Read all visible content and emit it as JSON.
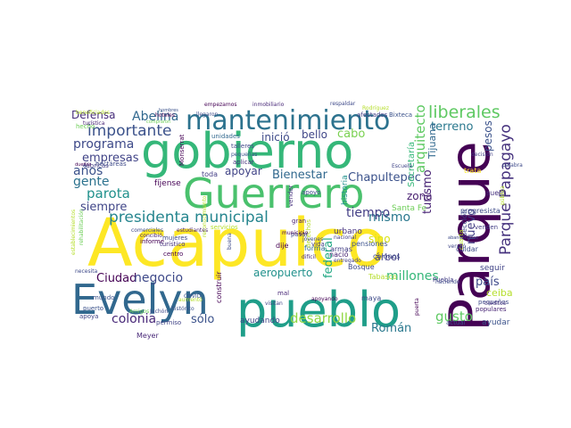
{
  "words": [
    {
      "text": "Acapulco",
      "color": "#fde725"
    },
    {
      "text": "Parque",
      "color": "#440154"
    },
    {
      "text": "pueblo",
      "color": "#1f9e89"
    },
    {
      "text": "gobierno",
      "color": "#35b779"
    },
    {
      "text": "Guerrero",
      "color": "#4ac16d"
    },
    {
      "text": "Evelyn",
      "color": "#31688e"
    },
    {
      "text": "mantenimiento",
      "color": "#2c728e"
    },
    {
      "text": "presidenta municipal",
      "color": "#25858e"
    },
    {
      "text": "liberales",
      "color": "#5ec962"
    },
    {
      "text": "Parque Papagayo",
      "color": "#46327e"
    },
    {
      "text": "importante",
      "color": "#3b528b"
    },
    {
      "text": "Abelina",
      "color": "#31688e"
    },
    {
      "text": "Defensa",
      "color": "#472d7b"
    },
    {
      "text": "programa",
      "color": "#3e4a89"
    },
    {
      "text": "empresas",
      "color": "#414487"
    },
    {
      "text": "años",
      "color": "#3b528b"
    },
    {
      "text": "gente",
      "color": "#2c728e"
    },
    {
      "text": "parota",
      "color": "#21918c"
    },
    {
      "text": "siempre",
      "color": "#404688"
    },
    {
      "text": "Ciudad",
      "color": "#440154"
    },
    {
      "text": "negocio",
      "color": "#3e4989"
    },
    {
      "text": "colonia",
      "color": "#482878"
    },
    {
      "text": "sólo",
      "color": "#3b528b"
    },
    {
      "text": "desarrollo",
      "color": "#90d743"
    },
    {
      "text": "Román",
      "color": "#2a788e"
    },
    {
      "text": "millones",
      "color": "#35b779"
    },
    {
      "text": "federal",
      "color": "#22a884"
    },
    {
      "text": "mismo",
      "color": "#2a788e"
    },
    {
      "text": "tiempo",
      "color": "#433e85"
    },
    {
      "text": "zona",
      "color": "#481f70"
    },
    {
      "text": "turismo",
      "color": "#482475"
    },
    {
      "text": "Chapultepec",
      "color": "#3b528b"
    },
    {
      "text": "Bienestar",
      "color": "#31688e"
    },
    {
      "text": "apoyar",
      "color": "#414487"
    },
    {
      "text": "inició",
      "color": "#3e4a89"
    },
    {
      "text": "bello",
      "color": "#404688"
    },
    {
      "text": "cabo",
      "color": "#7ad151"
    },
    {
      "text": "arquitecto",
      "color": "#5ec962"
    },
    {
      "text": "terreno",
      "color": "#2a788e"
    },
    {
      "text": "pesos",
      "color": "#3b528b"
    },
    {
      "text": "nuevo",
      "color": "#433e85"
    },
    {
      "text": "país",
      "color": "#3e4a89"
    },
    {
      "text": "gusto",
      "color": "#5ec962"
    },
    {
      "text": "Tijuana",
      "color": "#31688e"
    },
    {
      "text": "Secretaría",
      "color": "#35b779"
    },
    {
      "text": "historia",
      "color": "#21918c"
    },
    {
      "text": "sino",
      "color": "#d8e219"
    },
    {
      "text": "urbano",
      "color": "#46327e"
    },
    {
      "text": "aeropuerto",
      "color": "#21918c"
    },
    {
      "text": "ceiba",
      "color": "#b5de2b"
    },
    {
      "text": "seguir",
      "color": "#414487"
    },
    {
      "text": "ayudar",
      "color": "#3b528b"
    },
    {
      "text": "Santa Fe",
      "color": "#6ece58"
    },
    {
      "text": "árbol",
      "color": "#433e85"
    },
    {
      "text": "cuidar",
      "color": "#3e4989"
    },
    {
      "text": "fíjense",
      "color": "#440154"
    },
    {
      "text": "toda",
      "color": "#433e85"
    },
    {
      "text": "Meyer",
      "color": "#482878"
    },
    {
      "text": "apoya",
      "color": "#414487"
    },
    {
      "text": "construir",
      "color": "#440154"
    },
    {
      "text": "pensiones",
      "color": "#3b528b"
    },
    {
      "text": "nació",
      "color": "#482475"
    },
    {
      "text": "colonos",
      "color": "#3e4a89"
    },
    {
      "text": "forma",
      "color": "#31688e"
    },
    {
      "text": "armas",
      "color": "#433e85"
    },
    {
      "text": "Bosque",
      "color": "#3e4989"
    },
    {
      "text": "Tabasco",
      "color": "#b5de2b"
    },
    {
      "text": "maya",
      "color": "#3e4a89"
    },
    {
      "text": "puerto",
      "color": "#3b528b"
    },
    {
      "text": "Amigos",
      "color": "#6ece58"
    },
    {
      "text": "Juchón",
      "color": "#3e4989"
    },
    {
      "text": "permiso",
      "color": "#414487"
    },
    {
      "text": "ayudando",
      "color": "#404688"
    },
    {
      "text": "informe",
      "color": "#440154"
    },
    {
      "text": "mujeres",
      "color": "#3e4a89"
    },
    {
      "text": "turístico",
      "color": "#46327e"
    },
    {
      "text": "centro",
      "color": "#440154"
    },
    {
      "text": "mundo",
      "color": "#3b528b"
    },
    {
      "text": "vida",
      "color": "#433e85"
    },
    {
      "text": "gran",
      "color": "#481f70"
    },
    {
      "text": "pasar",
      "color": "#3e4989"
    },
    {
      "text": "dije",
      "color": "#440154"
    },
    {
      "text": "mal",
      "color": "#482878"
    },
    {
      "text": "apoyo",
      "color": "#3e4a89"
    },
    {
      "text": "visitan",
      "color": "#404688"
    },
    {
      "text": "actual",
      "color": "#3b528b"
    },
    {
      "text": "pequeños",
      "color": "#3e4989"
    },
    {
      "text": "populares",
      "color": "#482475"
    },
    {
      "text": "puerta",
      "color": "#440154"
    },
    {
      "text": "Puebla",
      "color": "#433e85"
    },
    {
      "text": "progresista",
      "color": "#3e4a89"
    },
    {
      "text": "suelo",
      "color": "#46327e"
    },
    {
      "text": "Bixteca",
      "color": "#3b528b"
    },
    {
      "text": "afectados",
      "color": "#433e85"
    },
    {
      "text": "respaldar",
      "color": "#3e4989"
    },
    {
      "text": "empezamos",
      "color": "#440154"
    },
    {
      "text": "inmobiliario",
      "color": "#482878"
    },
    {
      "text": "unidades",
      "color": "#31688e"
    },
    {
      "text": "talleres",
      "color": "#404688"
    },
    {
      "text": "fábricas",
      "color": "#433e85"
    },
    {
      "text": "hectáreas",
      "color": "#3e4a89"
    },
    {
      "text": "hecho",
      "color": "#6ece58"
    },
    {
      "text": "turística",
      "color": "#482475"
    },
    {
      "text": "dueños",
      "color": "#440154"
    },
    {
      "text": "servicios",
      "color": "#b5de2b"
    },
    {
      "text": "comerciales",
      "color": "#3e4989"
    },
    {
      "text": "estudiantes",
      "color": "#481f70"
    },
    {
      "text": "COVID",
      "color": "#3b528b"
    },
    {
      "text": "vender",
      "color": "#46327e"
    },
    {
      "text": "venden",
      "color": "#433e85"
    },
    {
      "text": "trata",
      "color": "#fde725"
    },
    {
      "text": "palabra",
      "color": "#3e4a89"
    },
    {
      "text": "decisión",
      "color": "#433e85"
    },
    {
      "text": "pública",
      "color": "#b5de2b"
    },
    {
      "text": "sección",
      "color": "#3e4989"
    },
    {
      "text": "cuarta",
      "color": "#b5de2b"
    },
    {
      "text": "Monserrat",
      "color": "#440154"
    },
    {
      "text": "aplicar",
      "color": "#46327e"
    },
    {
      "text": "pequeñas",
      "color": "#3b528b"
    },
    {
      "text": "Escuela",
      "color": "#404688"
    },
    {
      "text": "buena",
      "color": "#3e4a89"
    },
    {
      "text": "difícil",
      "color": "#482878"
    },
    {
      "text": "nacional",
      "color": "#433e85"
    },
    {
      "text": "haciendo",
      "color": "#3e4989"
    },
    {
      "text": "créditos",
      "color": "#46327e"
    },
    {
      "text": "Rodríguez",
      "color": "#b5de2b"
    },
    {
      "text": "hombres",
      "color": "#3b528b"
    },
    {
      "text": "hoteles",
      "color": "#440154"
    },
    {
      "text": "beneficiados",
      "color": "#b5de2b"
    },
    {
      "text": "compraron",
      "color": "#6ece58"
    },
    {
      "text": "abandonadas",
      "color": "#3e4a89"
    },
    {
      "text": "vendió",
      "color": "#404688"
    },
    {
      "text": "derechos",
      "color": "#b5de2b"
    },
    {
      "text": "entregado",
      "color": "#433e85"
    },
    {
      "text": "jóvenes",
      "color": "#3e4989"
    },
    {
      "text": "apoyando",
      "color": "#440154"
    },
    {
      "text": "histórico",
      "color": "#3b528b"
    },
    {
      "text": "concibió",
      "color": "#482475"
    },
    {
      "text": "rehabilitación",
      "color": "#6ece58"
    },
    {
      "text": "establecimientos",
      "color": "#b5de2b"
    },
    {
      "text": "necesita",
      "color": "#3e4989"
    },
    {
      "text": "aumentó",
      "color": "#b5de2b"
    },
    {
      "text": "reconocimiento",
      "color": "#b5de2b"
    },
    {
      "text": "municipio",
      "color": "#440154"
    },
    {
      "text": "llegaron",
      "color": "#3e4a89"
    }
  ]
}
